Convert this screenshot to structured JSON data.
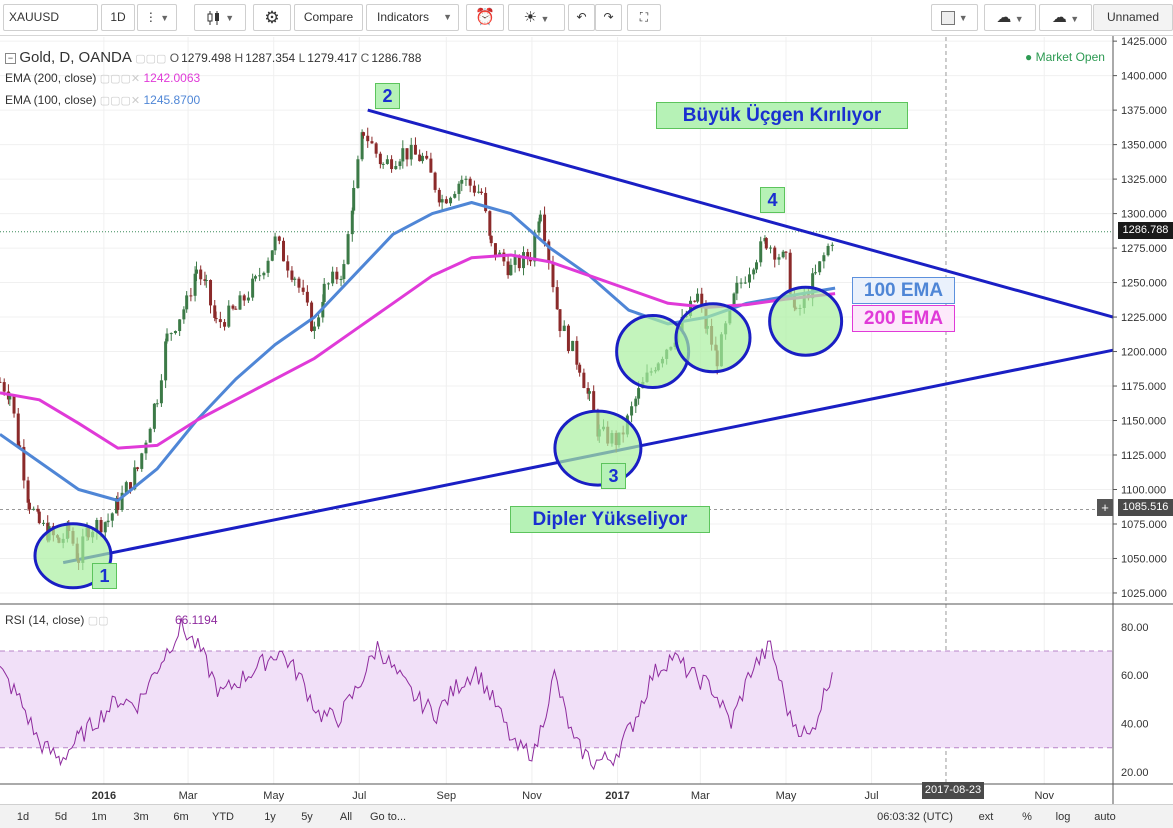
{
  "toolbar": {
    "symbol": "XAUUSD",
    "interval": "1D",
    "compare_label": "Compare",
    "indicators_label": "Indicators",
    "layout_name": "Unnamed",
    "icons": [
      "more-vert-icon",
      "candles-icon",
      "gear-icon",
      "alert-clock-icon",
      "bulb-icon",
      "undo-icon",
      "redo-icon",
      "fullscreen-icon",
      "color-square-icon",
      "cloud-download-icon",
      "cloud-upload-icon"
    ]
  },
  "legend": {
    "main": {
      "name": "Gold, D, OANDA",
      "o_label": "O",
      "o": "1279.498",
      "h_label": "H",
      "h": "1287.354",
      "l_label": "L",
      "l": "1279.417",
      "c_label": "C",
      "c": "1286.788"
    },
    "ema200": {
      "label": "EMA (200, close)",
      "value": "1242.0063",
      "color": "#e03ad8"
    },
    "ema100": {
      "label": "EMA (100, close)",
      "value": "1245.8700",
      "color": "#4f86d6"
    },
    "rsi": {
      "label": "RSI (14, close)",
      "value": "66.1194",
      "color": "#8e2b9e"
    },
    "market_status": "Market Open"
  },
  "annotations": {
    "title_break": "Büyük Üçgen Kırılıyor",
    "higher_lows": "Dipler Yükseliyor",
    "ema100_label": "100 EMA",
    "ema200_label": "200 EMA",
    "point1": "1",
    "point2": "2",
    "point3": "3",
    "point4": "4"
  },
  "badges": {
    "last_price": "1286.788",
    "crosshair_price": "1085.516",
    "crosshair_date": "2017-08-23"
  },
  "bottom_bar": {
    "ranges": [
      "1d",
      "5d",
      "1m",
      "3m",
      "6m",
      "YTD",
      "1y",
      "5y",
      "All"
    ],
    "goto": "Go to...",
    "clock": "06:03:32 (UTC)",
    "options": [
      "ext",
      "%",
      "log",
      "auto"
    ]
  },
  "colors": {
    "up": "#3c7a47",
    "down": "#8b2a2a",
    "trend": "#1a1fc4",
    "ema100": "#4f86d6",
    "ema200": "#e03ad8",
    "rsi": "#8e2b9e",
    "rsi_band": "#f1e0f8",
    "circle_fill": "#a9f0a0"
  },
  "chart_data": {
    "type": "line",
    "title": "Gold, D, OANDA",
    "x_tick_labels": [
      "2016",
      "Mar",
      "May",
      "Jul",
      "Sep",
      "Nov",
      "2017",
      "Mar",
      "May",
      "Jul",
      "Nov"
    ],
    "y_tick_labels": [
      1025,
      1050,
      1075,
      1100,
      1125,
      1150,
      1175,
      1200,
      1225,
      1250,
      1275,
      1300,
      1325,
      1350,
      1375,
      1400,
      1425
    ],
    "ylim": [
      1017,
      1428
    ],
    "x_range": [
      "2015-10-19",
      "2017-12-20"
    ],
    "series": [
      {
        "name": "Gold, D, OANDA",
        "x": [
          "2015-10-19",
          "2015-10-26",
          "2015-11-02",
          "2015-11-09",
          "2015-11-16",
          "2015-11-23",
          "2015-11-30",
          "2015-12-07",
          "2015-12-14",
          "2015-12-21",
          "2016-01-04",
          "2016-01-11",
          "2016-01-25",
          "2016-02-08",
          "2016-02-15",
          "2016-02-29",
          "2016-03-07",
          "2016-03-14",
          "2016-03-21",
          "2016-04-04",
          "2016-04-18",
          "2016-05-02",
          "2016-05-16",
          "2016-05-30",
          "2016-06-06",
          "2016-06-20",
          "2016-06-27",
          "2016-07-04",
          "2016-07-18",
          "2016-08-01",
          "2016-08-15",
          "2016-08-29",
          "2016-09-12",
          "2016-09-26",
          "2016-10-03",
          "2016-10-17",
          "2016-10-31",
          "2016-11-07",
          "2016-11-21",
          "2016-12-05",
          "2016-12-12",
          "2016-12-19",
          "2017-01-02",
          "2017-01-16",
          "2017-01-30",
          "2017-02-13",
          "2017-02-27",
          "2017-03-06",
          "2017-03-13",
          "2017-03-27",
          "2017-04-10",
          "2017-04-17",
          "2017-05-01",
          "2017-05-08",
          "2017-05-22",
          "2017-06-05"
        ],
        "values": [
          1178,
          1170,
          1130,
          1090,
          1075,
          1068,
          1062,
          1070,
          1050,
          1072,
          1078,
          1090,
          1115,
          1168,
          1210,
          1235,
          1260,
          1245,
          1220,
          1230,
          1250,
          1280,
          1255,
          1215,
          1245,
          1260,
          1315,
          1360,
          1335,
          1345,
          1340,
          1310,
          1325,
          1315,
          1275,
          1260,
          1270,
          1305,
          1220,
          1190,
          1165,
          1140,
          1135,
          1170,
          1195,
          1215,
          1240,
          1215,
          1195,
          1245,
          1270,
          1280,
          1265,
          1225,
          1255,
          1287
        ]
      },
      {
        "name": "EMA (100, close)",
        "x": [
          "2015-10-19",
          "2015-11-16",
          "2015-12-14",
          "2016-01-11",
          "2016-02-08",
          "2016-03-07",
          "2016-04-04",
          "2016-05-02",
          "2016-05-30",
          "2016-06-27",
          "2016-07-25",
          "2016-08-22",
          "2016-09-19",
          "2016-10-17",
          "2016-11-14",
          "2016-12-12",
          "2017-01-09",
          "2017-02-06",
          "2017-03-06",
          "2017-04-03",
          "2017-05-01",
          "2017-06-05"
        ],
        "values": [
          1140,
          1120,
          1100,
          1092,
          1115,
          1150,
          1180,
          1205,
          1225,
          1255,
          1285,
          1300,
          1308,
          1300,
          1275,
          1255,
          1230,
          1220,
          1225,
          1235,
          1240,
          1246
        ]
      },
      {
        "name": "EMA (200, close)",
        "x": [
          "2015-10-19",
          "2015-11-16",
          "2015-12-14",
          "2016-01-11",
          "2016-02-08",
          "2016-03-07",
          "2016-04-04",
          "2016-05-02",
          "2016-05-30",
          "2016-06-27",
          "2016-07-25",
          "2016-08-22",
          "2016-09-19",
          "2016-10-17",
          "2016-11-14",
          "2016-12-12",
          "2017-01-09",
          "2017-02-06",
          "2017-03-06",
          "2017-04-03",
          "2017-05-01",
          "2017-06-05"
        ],
        "values": [
          1170,
          1165,
          1148,
          1130,
          1132,
          1150,
          1165,
          1180,
          1195,
          1215,
          1235,
          1255,
          1268,
          1270,
          1265,
          1255,
          1245,
          1235,
          1232,
          1234,
          1238,
          1242
        ]
      }
    ],
    "trend_lines": [
      {
        "name": "descending",
        "x": [
          "2016-07-07",
          "2017-12-20"
        ],
        "values": [
          1375,
          1225
        ]
      },
      {
        "name": "ascending",
        "x": [
          "2015-12-03",
          "2017-12-20"
        ],
        "values": [
          1047,
          1201
        ]
      }
    ],
    "markers": [
      {
        "label": "1",
        "x": "2015-12-10",
        "y": 1060
      },
      {
        "label": "2",
        "x": "2016-07-07",
        "y": 1375
      },
      {
        "label": "3",
        "x": "2016-12-18",
        "y": 1128
      },
      {
        "label": "4",
        "x": "2017-04-20",
        "y": 1292
      }
    ],
    "rsi": {
      "name": "RSI (14, close)",
      "ylim": [
        15,
        89
      ],
      "y_tick_labels": [
        20,
        40,
        60,
        80
      ],
      "band": [
        30,
        70
      ],
      "x": [
        "2015-10-19",
        "2015-11-02",
        "2015-11-16",
        "2015-12-01",
        "2015-12-14",
        "2015-12-28",
        "2016-01-11",
        "2016-01-25",
        "2016-02-11",
        "2016-02-25",
        "2016-03-10",
        "2016-03-24",
        "2016-04-07",
        "2016-04-21",
        "2016-05-05",
        "2016-05-19",
        "2016-06-02",
        "2016-06-16",
        "2016-06-30",
        "2016-07-14",
        "2016-07-28",
        "2016-08-11",
        "2016-08-25",
        "2016-09-08",
        "2016-09-22",
        "2016-10-06",
        "2016-10-20",
        "2016-11-03",
        "2016-11-17",
        "2016-12-01",
        "2016-12-15",
        "2016-12-29",
        "2017-01-12",
        "2017-01-26",
        "2017-02-09",
        "2017-02-23",
        "2017-03-09",
        "2017-03-23",
        "2017-04-06",
        "2017-04-20",
        "2017-05-04",
        "2017-05-18",
        "2017-06-05"
      ],
      "values": [
        62,
        50,
        32,
        25,
        34,
        42,
        50,
        48,
        66,
        80,
        70,
        52,
        58,
        64,
        70,
        60,
        44,
        42,
        55,
        72,
        60,
        50,
        44,
        55,
        62,
        48,
        30,
        28,
        60,
        32,
        24,
        26,
        40,
        60,
        68,
        60,
        55,
        40,
        62,
        72,
        42,
        34,
        66
      ]
    }
  }
}
